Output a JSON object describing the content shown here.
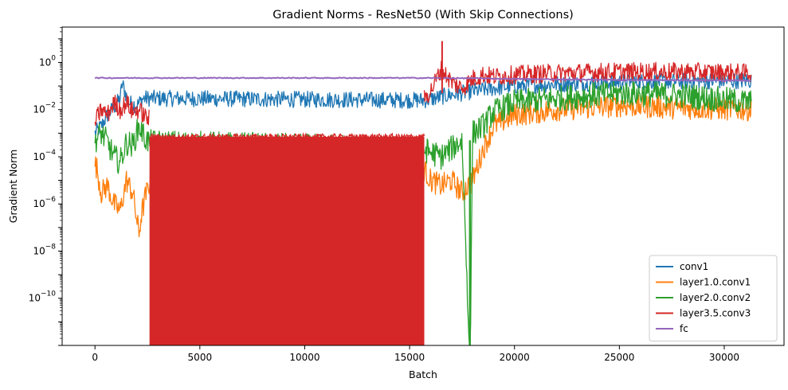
{
  "chart_data": {
    "type": "line",
    "title": "Gradient Norms - ResNet50 (With Skip Connections)",
    "xlabel": "Batch",
    "ylabel": "Gradient Norm",
    "xlim": [
      -1565,
      32850
    ],
    "ylim_log10": [
      -12,
      1.5
    ],
    "yscale": "log",
    "grid": false,
    "legend_position": "lower-right",
    "x_ticks": [
      {
        "value": 0,
        "label": "0"
      },
      {
        "value": 5000,
        "label": "5000"
      },
      {
        "value": 10000,
        "label": "10000"
      },
      {
        "value": 15000,
        "label": "15000"
      },
      {
        "value": 20000,
        "label": "20000"
      },
      {
        "value": 25000,
        "label": "25000"
      },
      {
        "value": 30000,
        "label": "30000"
      }
    ],
    "y_ticks": [
      {
        "exp": -10,
        "label": "10",
        "sup": "−10"
      },
      {
        "exp": -8,
        "label": "10",
        "sup": "−8"
      },
      {
        "exp": -6,
        "label": "10",
        "sup": "−6"
      },
      {
        "exp": -4,
        "label": "10",
        "sup": "−4"
      },
      {
        "exp": -2,
        "label": "10",
        "sup": "−2"
      },
      {
        "exp": 0,
        "label": "10",
        "sup": "0"
      }
    ],
    "series": [
      {
        "name": "conv1",
        "color": "#1f77b4",
        "x": [
          0,
          300,
          600,
          900,
          1200,
          1300,
          1600,
          2000,
          2300,
          2600,
          15700,
          16200,
          16800,
          17500,
          18000,
          18500,
          19000,
          20000,
          22000,
          25000,
          28000,
          31300
        ],
        "y": [
          0.001,
          0.002,
          0.006,
          0.012,
          0.03,
          0.13,
          0.02,
          0.015,
          0.03,
          0.03,
          0.025,
          0.03,
          0.04,
          0.05,
          0.06,
          0.07,
          0.08,
          0.1,
          0.12,
          0.15,
          0.16,
          0.17
        ]
      },
      {
        "name": "layer1.0.conv1",
        "color": "#ff7f0e",
        "x": [
          0,
          100,
          300,
          600,
          900,
          1200,
          1500,
          1800,
          2100,
          2200,
          2400,
          2600,
          15700,
          16000,
          16500,
          17000,
          17500,
          18000,
          18500,
          19000,
          20000,
          22000,
          25000,
          28000,
          31300
        ],
        "y": [
          5e-05,
          3e-05,
          3e-06,
          6e-06,
          1e-06,
          5e-07,
          1e-05,
          3e-06,
          5e-08,
          3e-07,
          2e-06,
          8e-06,
          3e-05,
          1e-05,
          6e-06,
          1e-05,
          3e-06,
          1e-05,
          0.0002,
          0.002,
          0.006,
          0.01,
          0.015,
          0.012,
          0.01
        ]
      },
      {
        "name": "layer2.0.conv2",
        "color": "#2ca02c",
        "x": [
          0,
          300,
          600,
          900,
          1200,
          1500,
          1800,
          2100,
          2400,
          2600,
          15700,
          16500,
          17500,
          17850,
          17900,
          18000,
          18500,
          19000,
          20000,
          22000,
          25000,
          28000,
          31300
        ],
        "y": [
          0.0005,
          0.001,
          0.0004,
          0.0001,
          6e-05,
          0.0004,
          0.0003,
          0.002,
          0.0006,
          0.0004,
          0.0002,
          0.0001,
          0.0005,
          1e-12,
          1e-12,
          0.001,
          0.002,
          0.008,
          0.02,
          0.03,
          0.05,
          0.04,
          0.02
        ]
      },
      {
        "name": "layer3.5.conv3",
        "color": "#d62728",
        "x": [
          0,
          300,
          600,
          900,
          1200,
          1500,
          1800,
          2100,
          2400,
          2600,
          15700,
          16000,
          16500,
          17000,
          17500,
          18000,
          18500,
          19000,
          20000,
          22000,
          25000,
          28000,
          31300
        ],
        "y": [
          0.003,
          0.01,
          0.006,
          0.02,
          0.01,
          0.02,
          0.008,
          0.01,
          0.005,
          0.004,
          0.03,
          0.06,
          0.5,
          0.15,
          0.08,
          0.2,
          0.3,
          0.25,
          0.3,
          0.35,
          0.4,
          0.4,
          0.35
        ],
        "floor_band": {
          "x_start": 2600,
          "x_end": 15700,
          "top": 0.0007
        }
      },
      {
        "name": "fc",
        "color": "#9467bd",
        "x": [
          0,
          2000,
          4000,
          8000,
          12000,
          16000,
          18500,
          20000,
          25000,
          31300
        ],
        "y": [
          0.22,
          0.22,
          0.22,
          0.22,
          0.22,
          0.22,
          0.21,
          0.2,
          0.18,
          0.17
        ]
      }
    ]
  }
}
